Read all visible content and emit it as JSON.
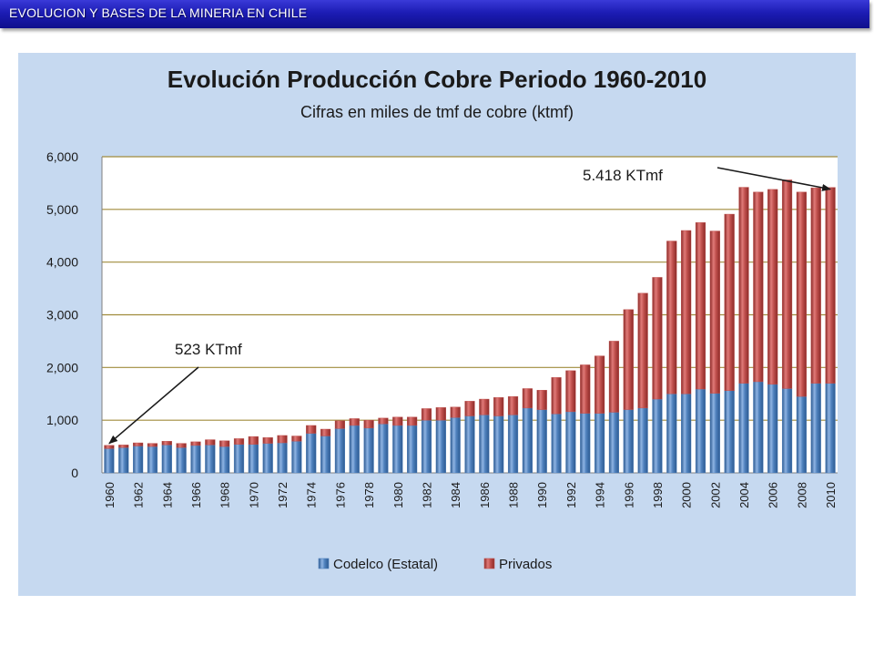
{
  "header": {
    "title": "EVOLUCION Y BASES DE LA MINERIA EN CHILE"
  },
  "colors": {
    "header_bar": "#1c1cb4",
    "panel_background": "#c6d9f0",
    "codelco": "#4f81bd",
    "privados": "#c0504d",
    "gridline": "#a08c3c"
  },
  "chart_data": {
    "type": "bar",
    "stacked": true,
    "title": "Evolución Producción Cobre Periodo 1960-2010",
    "subtitle": "Cifras en miles de tmf de cobre  (ktmf)",
    "xlabel": "",
    "ylabel": "",
    "ylim": [
      0,
      6000
    ],
    "yticks": [
      0,
      1000,
      2000,
      3000,
      4000,
      5000,
      6000
    ],
    "ytick_labels": [
      "0",
      "1,000",
      "2,000",
      "3,000",
      "4,000",
      "5,000",
      "6,000"
    ],
    "grid": true,
    "legend_position": "bottom",
    "categories": [
      "1960",
      "1961",
      "1962",
      "1963",
      "1964",
      "1965",
      "1966",
      "1967",
      "1968",
      "1969",
      "1970",
      "1971",
      "1972",
      "1973",
      "1974",
      "1975",
      "1976",
      "1977",
      "1978",
      "1979",
      "1980",
      "1981",
      "1982",
      "1983",
      "1984",
      "1985",
      "1986",
      "1987",
      "1988",
      "1989",
      "1990",
      "1991",
      "1992",
      "1993",
      "1994",
      "1995",
      "1996",
      "1997",
      "1998",
      "1999",
      "2000",
      "2001",
      "2002",
      "2003",
      "2004",
      "2005",
      "2006",
      "2007",
      "2008",
      "2009",
      "2010"
    ],
    "xtick_labels": [
      "1960",
      "1962",
      "1964",
      "1966",
      "1968",
      "1970",
      "1972",
      "1974",
      "1976",
      "1978",
      "1980",
      "1982",
      "1984",
      "1986",
      "1988",
      "1990",
      "1992",
      "1994",
      "1996",
      "1998",
      "2000",
      "2002",
      "2004",
      "2006",
      "2008",
      "2010"
    ],
    "series": [
      {
        "name": "Codelco (Estatal)",
        "color": "#4f81bd",
        "values": [
          460,
          480,
          510,
          500,
          530,
          480,
          520,
          530,
          500,
          540,
          540,
          560,
          570,
          600,
          750,
          700,
          840,
          900,
          850,
          930,
          900,
          900,
          1000,
          1000,
          1050,
          1080,
          1100,
          1080,
          1100,
          1230,
          1200,
          1120,
          1160,
          1130,
          1130,
          1150,
          1200,
          1230,
          1400,
          1500,
          1500,
          1590,
          1510,
          1560,
          1700,
          1730,
          1680,
          1600,
          1450,
          1700,
          1700
        ]
      },
      {
        "name": "Privados",
        "color": "#c0504d",
        "values": [
          63,
          50,
          60,
          60,
          70,
          80,
          70,
          100,
          110,
          110,
          150,
          110,
          140,
          100,
          150,
          130,
          150,
          130,
          150,
          110,
          160,
          160,
          220,
          240,
          200,
          280,
          300,
          350,
          350,
          370,
          370,
          690,
          780,
          920,
          1090,
          1350,
          1900,
          2180,
          2310,
          2900,
          3100,
          3160,
          3080,
          3350,
          3720,
          3600,
          3700,
          3960,
          3880,
          3710,
          3718
        ]
      }
    ],
    "annotations": [
      {
        "text": "523  KTmf",
        "category": "1960",
        "value": 523
      },
      {
        "text": "5.418 KTmf",
        "category": "2010",
        "value": 5418
      }
    ]
  }
}
